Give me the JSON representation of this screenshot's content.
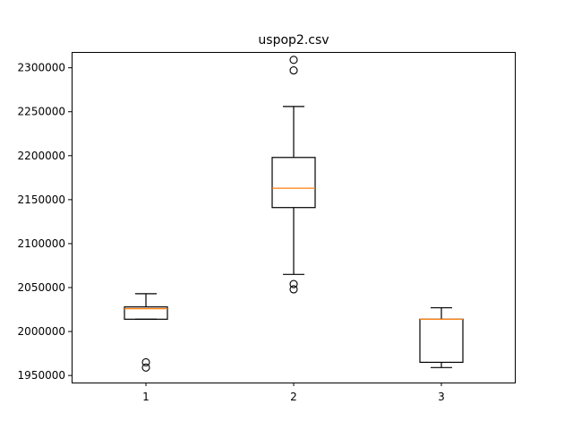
{
  "chart_data": {
    "type": "box",
    "title": "uspop2.csv",
    "xlabel": "",
    "ylabel": "",
    "categories": [
      "1",
      "2",
      "3"
    ],
    "ylim": [
      1942000,
      2318000
    ],
    "y_ticks": [
      1950000,
      2000000,
      2050000,
      2100000,
      2150000,
      2200000,
      2250000,
      2300000
    ],
    "y_tick_labels": [
      "1950000",
      "2000000",
      "2050000",
      "2100000",
      "2150000",
      "2200000",
      "2250000",
      "2300000"
    ],
    "grid": false,
    "boxes": [
      {
        "category": "1",
        "whisker_low": 2014000,
        "q1": 2014000,
        "median": 2026000,
        "q3": 2028000,
        "whisker_high": 2043000,
        "outliers": [
          1959000,
          1965000
        ]
      },
      {
        "category": "2",
        "whisker_low": 2065000,
        "q1": 2141000,
        "median": 2163000,
        "q3": 2198000,
        "whisker_high": 2256000,
        "outliers": [
          2048000,
          2054000,
          2297000,
          2309000
        ]
      },
      {
        "category": "3",
        "whisker_low": 1959000,
        "q1": 1965000,
        "median": 2014000,
        "q3": 2014000,
        "whisker_high": 2027000,
        "outliers": []
      }
    ],
    "colors": {
      "box": "#000000",
      "median": "#ff7f0e",
      "outlier": "#000000",
      "axes": "#000000",
      "background": "#ffffff"
    }
  }
}
